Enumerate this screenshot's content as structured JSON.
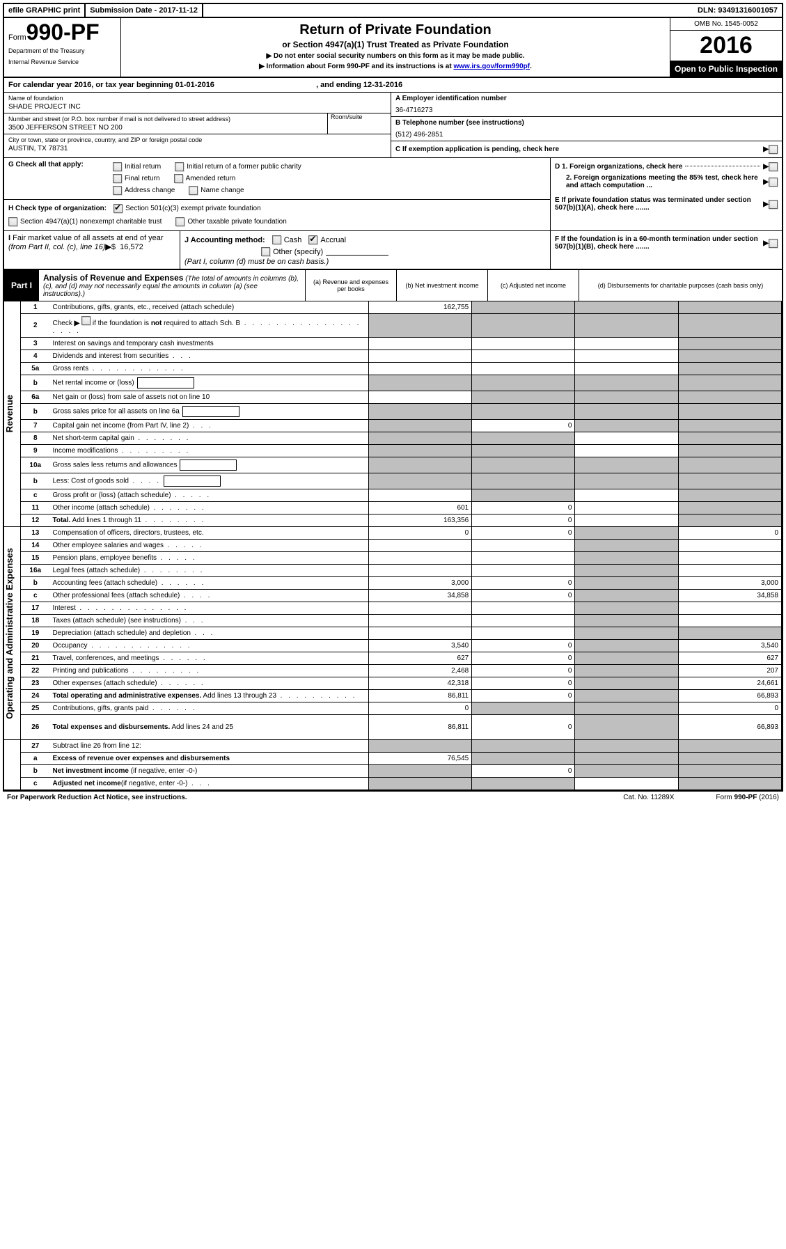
{
  "topbar": {
    "efile": "efile GRAPHIC print",
    "submission": "Submission Date - 2017-11-12",
    "dln": "DLN: 93491316001057"
  },
  "header": {
    "form_word": "Form",
    "form_no": "990-PF",
    "dept1": "Department of the Treasury",
    "dept2": "Internal Revenue Service",
    "title": "Return of Private Foundation",
    "subtitle": "or Section 4947(a)(1) Trust Treated as Private Foundation",
    "note1": "▶ Do not enter social security numbers on this form as it may be made public.",
    "note2_pre": "▶ Information about Form 990-PF and its instructions is at ",
    "note2_link": "www.irs.gov/form990pf",
    "omb": "OMB No. 1545-0052",
    "year": "2016",
    "open": "Open to Public Inspection"
  },
  "cal_year": {
    "pre": "For calendar year 2016, or tax year beginning ",
    "begin": "01-01-2016",
    "mid": " , and ending ",
    "end": "12-31-2016"
  },
  "entity": {
    "name_label": "Name of foundation",
    "name": "SHADE PROJECT INC",
    "addr_label": "Number and street (or P.O. box number if mail is not delivered to street address)",
    "room_label": "Room/suite",
    "addr": "3500 JEFFERSON STREET NO 200",
    "city_label": "City or town, state or province, country, and ZIP or foreign postal code",
    "city": "AUSTIN, TX  78731",
    "a_label": "A Employer identification number",
    "a_val": "36-4716273",
    "b_label": "B Telephone number (see instructions)",
    "b_val": "(512) 496-2851",
    "c_label": "C If exemption application is pending, check here"
  },
  "g": {
    "label": "G Check all that apply:",
    "opts": [
      "Initial return",
      "Initial return of a former public charity",
      "Final return",
      "Amended return",
      "Address change",
      "Name change"
    ]
  },
  "h": {
    "label": "H Check type of organization:",
    "opt1": "Section 501(c)(3) exempt private foundation",
    "opt2": "Section 4947(a)(1) nonexempt charitable trust",
    "opt3": "Other taxable private foundation"
  },
  "i": {
    "label": "I Fair market value of all assets at end of year (from Part II, col. (c), line 16)▶$  16,572",
    "fmv": "16,572"
  },
  "j": {
    "label": "J Accounting method:",
    "cash": "Cash",
    "accrual": "Accrual",
    "other": "Other (specify)",
    "note": "(Part I, column (d) must be on cash basis.)"
  },
  "d": {
    "d1": "D 1. Foreign organizations, check here",
    "d2": "2. Foreign organizations meeting the 85% test, check here and attach computation ..."
  },
  "e": {
    "text": "E  If private foundation status was terminated under section 507(b)(1)(A), check here ......."
  },
  "f": {
    "text": "F  If the foundation is in a 60-month termination under section 507(b)(1)(B), check here ......."
  },
  "part1": {
    "label": "Part I",
    "title": "Analysis of Revenue and Expenses",
    "note": " (The total of amounts in columns (b), (c), and (d) may not necessarily equal the amounts in column (a) (see instructions).)",
    "col_a": "(a)   Revenue and expenses per books",
    "col_b": "(b)  Net investment income",
    "col_c": "(c)  Adjusted net income",
    "col_d": "(d)  Disbursements for charitable purposes (cash basis only)"
  },
  "side": {
    "rev": "Revenue",
    "exp": "Operating and Administrative Expenses"
  },
  "rows": [
    {
      "n": "1",
      "d": "Contributions, gifts, grants, etc., received (attach schedule)",
      "a": "162,755",
      "b": "shade",
      "c": "shade",
      "dd": "shade"
    },
    {
      "n": "2",
      "d": "Check ▶ ☐  if the foundation is <b>not</b> required to attach Sch. B",
      "dots": ". . . . . . . . . . . . . . . . . . .",
      "a": "shade",
      "b": "shade",
      "c": "shade",
      "dd": "shade",
      "special": "check"
    },
    {
      "n": "3",
      "d": "Interest on savings and temporary cash investments",
      "a": "",
      "b": "",
      "c": "",
      "dd": "shade"
    },
    {
      "n": "4",
      "d": "Dividends and interest from securities",
      "dots": ". . .",
      "a": "",
      "b": "",
      "c": "",
      "dd": "shade"
    },
    {
      "n": "5a",
      "d": "Gross rents",
      "dots": ". . . . . . . . . . . .",
      "a": "",
      "b": "",
      "c": "",
      "dd": "shade"
    },
    {
      "n": "b",
      "d": "Net rental income or (loss)",
      "a": "shade",
      "b": "shade",
      "c": "shade",
      "dd": "shade",
      "box": true
    },
    {
      "n": "6a",
      "d": "Net gain or (loss) from sale of assets not on line 10",
      "a": "",
      "b": "shade",
      "c": "shade",
      "dd": "shade"
    },
    {
      "n": "b",
      "d": "Gross sales price for all assets on line 6a",
      "a": "shade",
      "b": "shade",
      "c": "shade",
      "dd": "shade",
      "box": true
    },
    {
      "n": "7",
      "d": "Capital gain net income (from Part IV, line 2)",
      "dots": ". . .",
      "a": "shade",
      "b": "0",
      "c": "shade",
      "dd": "shade"
    },
    {
      "n": "8",
      "d": "Net short-term capital gain",
      "dots": ". . . . . . .",
      "a": "shade",
      "b": "shade",
      "c": "",
      "dd": "shade"
    },
    {
      "n": "9",
      "d": "Income modifications",
      "dots": ". . . . . . . . .",
      "a": "shade",
      "b": "shade",
      "c": "",
      "dd": "shade"
    },
    {
      "n": "10a",
      "d": "Gross sales less returns and allowances",
      "a": "shade",
      "b": "shade",
      "c": "shade",
      "dd": "shade",
      "box": true
    },
    {
      "n": "b",
      "d": "Less: Cost of goods sold",
      "dots": ". . . .",
      "a": "shade",
      "b": "shade",
      "c": "shade",
      "dd": "shade",
      "box": true
    },
    {
      "n": "c",
      "d": "Gross profit or (loss) (attach schedule)",
      "dots": ". . . . .",
      "a": "",
      "b": "shade",
      "c": "",
      "dd": "shade"
    },
    {
      "n": "11",
      "d": "Other income (attach schedule)",
      "dots": ". . . . . . .",
      "a": "601",
      "b": "0",
      "c": "",
      "dd": "shade"
    },
    {
      "n": "12",
      "d": "<b>Total.</b> Add lines 1 through 11",
      "dots": ". . . . . . . .",
      "a": "163,356",
      "b": "0",
      "c": "",
      "dd": "shade",
      "bold": true
    }
  ],
  "exp_rows": [
    {
      "n": "13",
      "d": "Compensation of officers, directors, trustees, etc.",
      "a": "0",
      "b": "0",
      "c": "shade",
      "dd": "0"
    },
    {
      "n": "14",
      "d": "Other employee salaries and wages",
      "dots": ". . . . .",
      "a": "",
      "b": "",
      "c": "shade",
      "dd": ""
    },
    {
      "n": "15",
      "d": "Pension plans, employee benefits",
      "dots": ". . . . .",
      "a": "",
      "b": "",
      "c": "shade",
      "dd": ""
    },
    {
      "n": "16a",
      "d": "Legal fees (attach schedule)",
      "dots": ". . . . . . . .",
      "a": "",
      "b": "",
      "c": "shade",
      "dd": ""
    },
    {
      "n": "b",
      "d": "Accounting fees (attach schedule)",
      "dots": ". . . . . .",
      "a": "3,000",
      "b": "0",
      "c": "shade",
      "dd": "3,000"
    },
    {
      "n": "c",
      "d": "Other professional fees (attach schedule)",
      "dots": ". . . .",
      "a": "34,858",
      "b": "0",
      "c": "shade",
      "dd": "34,858"
    },
    {
      "n": "17",
      "d": "Interest",
      "dots": ". . . . . . . . . . . . . .",
      "a": "",
      "b": "",
      "c": "shade",
      "dd": ""
    },
    {
      "n": "18",
      "d": "Taxes (attach schedule) (see instructions)",
      "dots": ". . .",
      "a": "",
      "b": "",
      "c": "shade",
      "dd": ""
    },
    {
      "n": "19",
      "d": "Depreciation (attach schedule) and depletion",
      "dots": ". . .",
      "a": "",
      "b": "",
      "c": "shade",
      "dd": "shade"
    },
    {
      "n": "20",
      "d": "Occupancy",
      "dots": ". . . . . . . . . . . . .",
      "a": "3,540",
      "b": "0",
      "c": "shade",
      "dd": "3,540"
    },
    {
      "n": "21",
      "d": "Travel, conferences, and meetings",
      "dots": ". . . . . .",
      "a": "627",
      "b": "0",
      "c": "shade",
      "dd": "627"
    },
    {
      "n": "22",
      "d": "Printing and publications",
      "dots": ". . . . . . . . .",
      "a": "2,468",
      "b": "0",
      "c": "shade",
      "dd": "207"
    },
    {
      "n": "23",
      "d": "Other expenses (attach schedule)",
      "dots": ". . . . . .",
      "a": "42,318",
      "b": "0",
      "c": "shade",
      "dd": "24,661"
    },
    {
      "n": "24",
      "d": "<b>Total operating and administrative expenses.</b> Add lines 13 through 23",
      "dots": ". . . . . . . . . .",
      "a": "86,811",
      "b": "0",
      "c": "shade",
      "dd": "66,893"
    },
    {
      "n": "25",
      "d": "Contributions, gifts, grants paid",
      "dots": ". . . . . .",
      "a": "0",
      "b": "shade",
      "c": "shade",
      "dd": "0"
    },
    {
      "n": "26",
      "d": "<b>Total expenses and disbursements.</b> Add lines 24 and 25",
      "a": "86,811",
      "b": "0",
      "c": "shade",
      "dd": "66,893",
      "tall": true
    }
  ],
  "bottom_rows": [
    {
      "n": "27",
      "d": "Subtract line 26 from line 12:",
      "a": "shade",
      "b": "shade",
      "c": "shade",
      "dd": "shade"
    },
    {
      "n": "a",
      "d": "<b>Excess of revenue over expenses and disbursements</b>",
      "a": "76,545",
      "b": "shade",
      "c": "shade",
      "dd": "shade"
    },
    {
      "n": "b",
      "d": "<b>Net investment income</b> (if negative, enter -0-)",
      "a": "shade",
      "b": "0",
      "c": "shade",
      "dd": "shade"
    },
    {
      "n": "c",
      "d": "<b>Adjusted net income</b>(if negative, enter -0-)",
      "dots": ". . .",
      "a": "shade",
      "b": "shade",
      "c": "",
      "dd": "shade"
    }
  ],
  "footer": {
    "left": "For Paperwork Reduction Act Notice, see instructions.",
    "cat": "Cat. No. 11289X",
    "right": "Form 990-PF (2016)",
    "form_bold": "990-PF"
  }
}
